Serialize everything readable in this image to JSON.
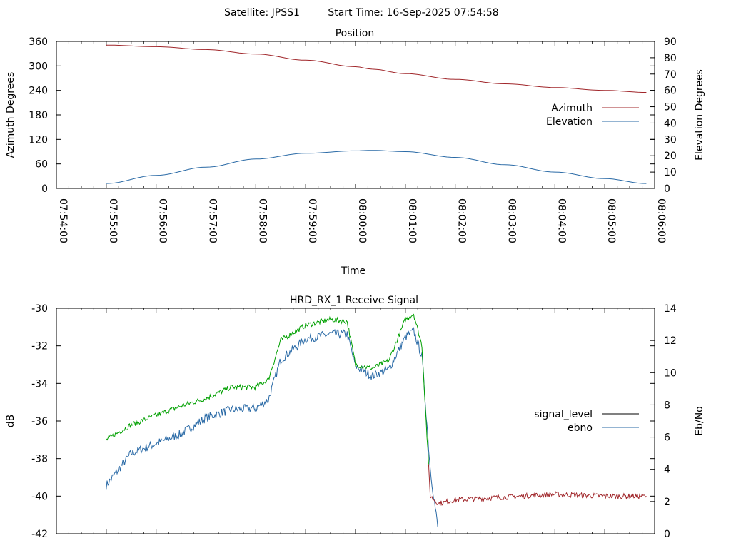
{
  "header": {
    "satellite": "Satellite: JPSS1",
    "start_time": "Start Time: 16-Sep-2025 07:54:58"
  },
  "chart_data": [
    {
      "type": "line",
      "title": "Position",
      "xlabel": "Time",
      "ylabel": "Azimuth Degrees",
      "y2label": "Elevation Degrees",
      "x_tick_labels": [
        "07:54:00",
        "07:55:00",
        "07:56:00",
        "07:57:00",
        "07:58:00",
        "07:59:00",
        "08:00:00",
        "08:01:00",
        "08:02:00",
        "08:03:00",
        "08:04:00",
        "08:05:00",
        "08:06:00"
      ],
      "x_range": [
        "07:54:00",
        "08:06:00"
      ],
      "ylim": [
        0,
        360
      ],
      "yticks": [
        0,
        60,
        120,
        180,
        240,
        300,
        360
      ],
      "y2lim": [
        0,
        90
      ],
      "y2ticks": [
        0,
        10,
        20,
        30,
        40,
        50,
        60,
        70,
        80,
        90
      ],
      "legend": "right",
      "x": [
        "07:55:00",
        "07:56:00",
        "07:57:00",
        "07:58:00",
        "07:59:00",
        "08:00:00",
        "08:00:20",
        "08:01:00",
        "08:02:00",
        "08:03:00",
        "08:04:00",
        "08:05:00",
        "08:05:50"
      ],
      "series": [
        {
          "name": "Azimuth",
          "axis": "y1",
          "color": "#a0262a",
          "values": [
            351,
            347,
            340,
            329,
            314,
            298,
            292,
            281,
            267,
            256,
            247,
            240,
            235
          ]
        },
        {
          "name": "Elevation",
          "axis": "y2",
          "color": "#2a6aa6",
          "values": [
            3.0,
            8.0,
            13.0,
            18.0,
            21.5,
            23.0,
            23.3,
            22.5,
            19.0,
            14.5,
            10.0,
            6.0,
            3.0
          ]
        }
      ]
    },
    {
      "type": "line",
      "title": "HRD_RX_1 Receive Signal",
      "ylabel": "dB",
      "y2label": "Eb/No",
      "x_range": [
        "07:54:00",
        "08:06:00"
      ],
      "ylim": [
        -42,
        -30
      ],
      "yticks": [
        -42,
        -40,
        -38,
        -36,
        -34,
        -32,
        -30
      ],
      "y2lim": [
        0,
        14
      ],
      "y2ticks": [
        0,
        2,
        4,
        6,
        8,
        10,
        12,
        14
      ],
      "legend": "right",
      "x": [
        "07:55:00",
        "07:55:30",
        "07:56:00",
        "07:56:30",
        "07:57:00",
        "07:57:30",
        "07:58:00",
        "07:58:15",
        "07:58:30",
        "07:59:00",
        "07:59:30",
        "07:59:50",
        "08:00:00",
        "08:00:20",
        "08:00:40",
        "08:01:00",
        "08:01:10",
        "08:01:20",
        "08:01:30",
        "08:01:40",
        "08:02:00",
        "08:03:00",
        "08:04:00",
        "08:05:00",
        "08:05:50"
      ],
      "series": [
        {
          "name": "signal_level",
          "axis": "y1",
          "color": "#000000",
          "line_color": "#00a000",
          "low_line_color": "#a0262a",
          "values": [
            -37.0,
            -36.2,
            -35.7,
            -35.2,
            -34.8,
            -34.2,
            -34.2,
            -33.8,
            -31.7,
            -30.9,
            -30.6,
            -30.7,
            -33.0,
            -33.2,
            -32.8,
            -30.6,
            -30.3,
            -32.0,
            -40.0,
            -40.4,
            -40.2,
            -40.05,
            -39.9,
            -40.0,
            -40.0
          ]
        },
        {
          "name": "ebno",
          "axis": "y2",
          "color": "#2a6aa6",
          "values": [
            3.0,
            5.0,
            5.6,
            6.2,
            7.2,
            7.7,
            7.8,
            8.3,
            10.8,
            12.1,
            12.4,
            12.4,
            10.4,
            9.8,
            10.2,
            12.2,
            12.6,
            11.0,
            4.0,
            0.0,
            null,
            null,
            null,
            null,
            null
          ]
        }
      ]
    }
  ]
}
